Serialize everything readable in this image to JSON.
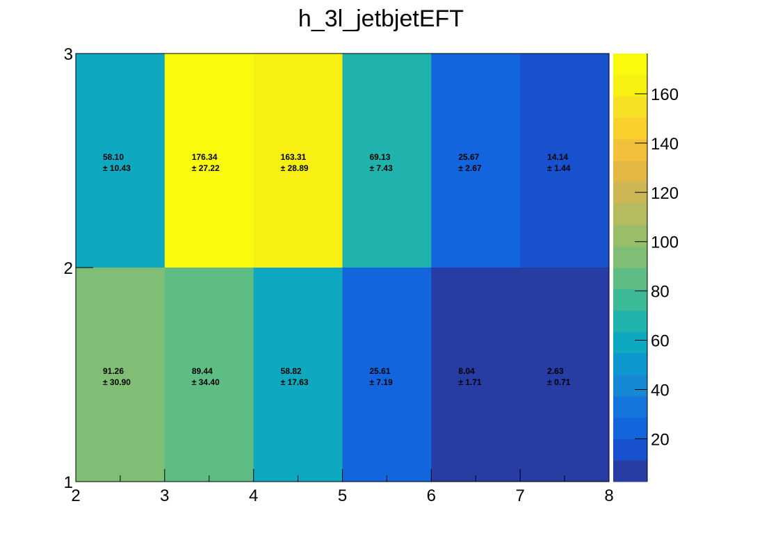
{
  "chart_data": {
    "type": "heatmap",
    "title": "h_3l_jetbjetEFT",
    "xlabel": "",
    "ylabel": "",
    "xlim": [
      2,
      8
    ],
    "ylim": [
      1,
      3
    ],
    "x_edges": [
      2,
      3,
      4,
      5,
      6,
      7,
      8
    ],
    "y_edges": [
      1,
      2,
      3
    ],
    "x_ticks": [
      "2",
      "3",
      "4",
      "5",
      "6",
      "7",
      "8"
    ],
    "y_ticks": [
      "1",
      "2",
      "3"
    ],
    "cells": [
      {
        "x": [
          2,
          3
        ],
        "y": [
          2,
          3
        ],
        "value": 58.1,
        "error": 10.43,
        "value_text": "58.10",
        "error_text": "± 10.43"
      },
      {
        "x": [
          3,
          4
        ],
        "y": [
          2,
          3
        ],
        "value": 176.34,
        "error": 27.22,
        "value_text": "176.34",
        "error_text": "± 27.22"
      },
      {
        "x": [
          4,
          5
        ],
        "y": [
          2,
          3
        ],
        "value": 163.31,
        "error": 28.89,
        "value_text": "163.31",
        "error_text": "± 28.89"
      },
      {
        "x": [
          5,
          6
        ],
        "y": [
          2,
          3
        ],
        "value": 69.13,
        "error": 7.43,
        "value_text": "69.13",
        "error_text": "± 7.43"
      },
      {
        "x": [
          6,
          7
        ],
        "y": [
          2,
          3
        ],
        "value": 25.67,
        "error": 2.67,
        "value_text": "25.67",
        "error_text": "± 2.67"
      },
      {
        "x": [
          7,
          8
        ],
        "y": [
          2,
          3
        ],
        "value": 14.14,
        "error": 1.44,
        "value_text": "14.14",
        "error_text": "± 1.44"
      },
      {
        "x": [
          2,
          3
        ],
        "y": [
          1,
          2
        ],
        "value": 91.26,
        "error": 30.9,
        "value_text": "91.26",
        "error_text": "± 30.90"
      },
      {
        "x": [
          3,
          4
        ],
        "y": [
          1,
          2
        ],
        "value": 89.44,
        "error": 34.4,
        "value_text": "89.44",
        "error_text": "± 34.40"
      },
      {
        "x": [
          4,
          5
        ],
        "y": [
          1,
          2
        ],
        "value": 58.82,
        "error": 17.63,
        "value_text": "58.82",
        "error_text": "± 17.63"
      },
      {
        "x": [
          5,
          6
        ],
        "y": [
          1,
          2
        ],
        "value": 25.61,
        "error": 7.19,
        "value_text": "25.61",
        "error_text": "± 7.19"
      },
      {
        "x": [
          6,
          7
        ],
        "y": [
          1,
          2
        ],
        "value": 8.04,
        "error": 1.71,
        "value_text": "8.04",
        "error_text": "± 1.71"
      },
      {
        "x": [
          7,
          8
        ],
        "y": [
          1,
          2
        ],
        "value": 2.63,
        "error": 0.71,
        "value_text": "2.63",
        "error_text": "± 0.71"
      }
    ],
    "colorbar": {
      "range": [
        2.63,
        176.34
      ],
      "ticks": [
        "20",
        "40",
        "60",
        "80",
        "100",
        "120",
        "140",
        "160"
      ],
      "palette": [
        "#283da4",
        "#1751cd",
        "#1265dc",
        "#1475dc",
        "#1688d6",
        "#0d98d0",
        "#0ea8c1",
        "#20b2ac",
        "#3cb997",
        "#5ebd85",
        "#80be76",
        "#99bd68",
        "#b5bb5e",
        "#cdb654",
        "#e2b744",
        "#f2c03a",
        "#f9d02c",
        "#f5e024",
        "#f8f012",
        "#f9fa0e"
      ]
    },
    "grid": false,
    "legend": "none"
  }
}
